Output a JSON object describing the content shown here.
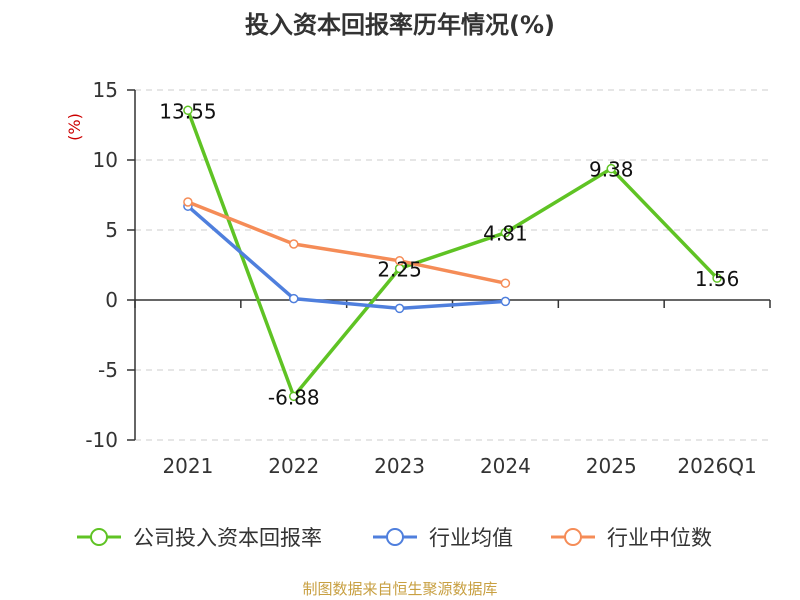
{
  "chart_data": {
    "type": "line",
    "title": "投入资本回报率历年情况(%)",
    "ylabel": "(%)",
    "xlabel": "",
    "categories": [
      "2021",
      "2022",
      "2023",
      "2024",
      "2025",
      "2026Q1"
    ],
    "ylim": [
      -10,
      15
    ],
    "yticks": [
      15,
      10,
      5,
      0,
      -5,
      -10
    ],
    "yticks_labels": [
      "15",
      "10",
      "5",
      "0",
      "-5",
      "-10"
    ],
    "grid": true,
    "legend_position": "bottom",
    "series": [
      {
        "name": "公司投入资本回报率",
        "color": "#5fc324",
        "values": [
          13.55,
          -6.88,
          2.25,
          4.81,
          9.38,
          1.56
        ],
        "labels": [
          "13.55",
          "-6.88",
          "2.25",
          "4.81",
          "9.38",
          "1.56"
        ]
      },
      {
        "name": "行业均值",
        "color": "#4f7fdd",
        "values": [
          6.7,
          0.1,
          -0.6,
          -0.1,
          null,
          null
        ]
      },
      {
        "name": "行业中位数",
        "color": "#f58c57",
        "values": [
          7.0,
          4.0,
          2.8,
          1.2,
          null,
          null
        ]
      }
    ]
  },
  "source": "制图数据来自恒生聚源数据库"
}
